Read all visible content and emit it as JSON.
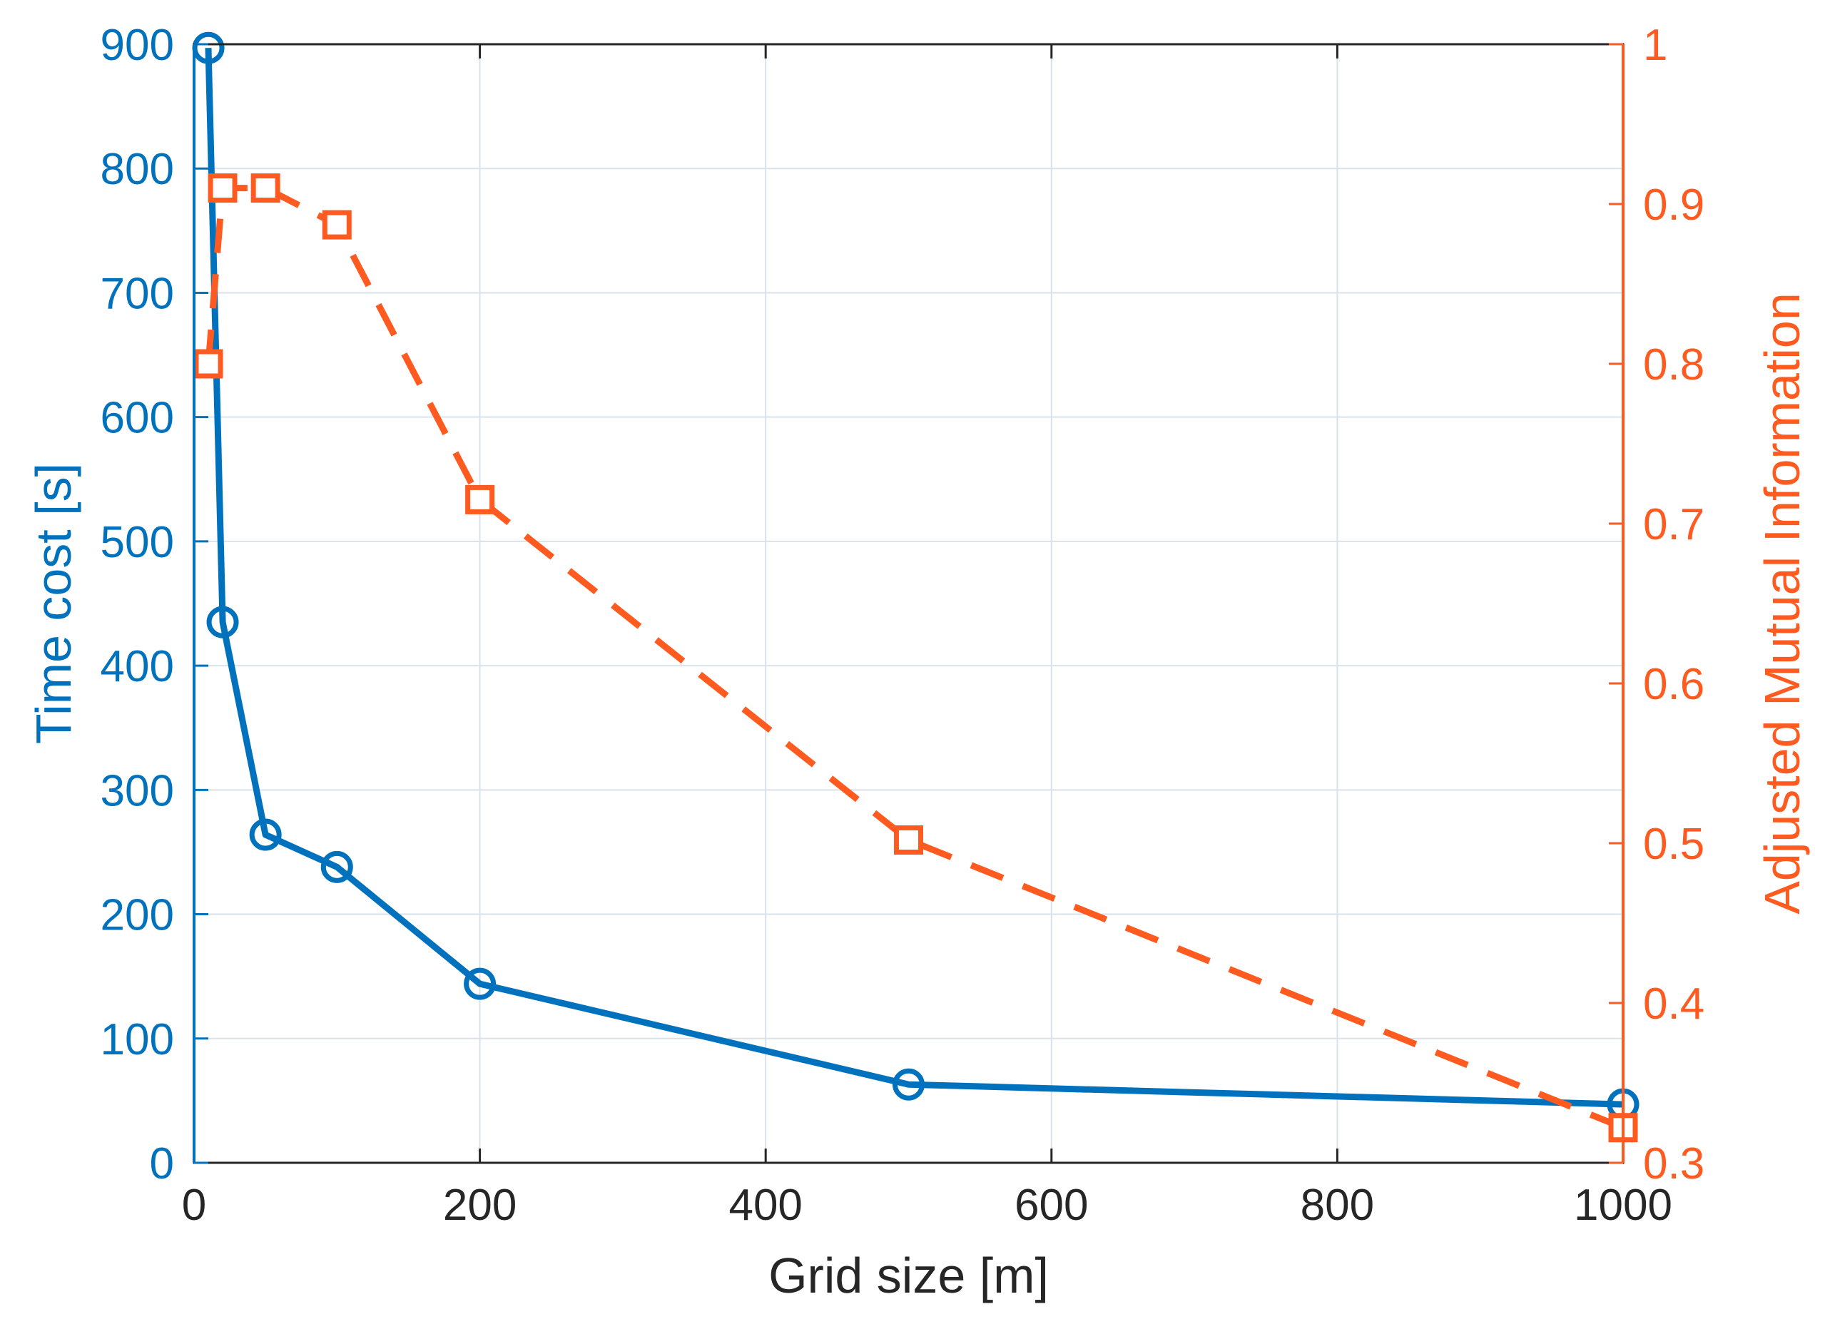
{
  "chart_data": {
    "type": "line",
    "title": "",
    "xlabel": "Grid size [m]",
    "ylabel_left": "Time cost [s]",
    "ylabel_right": "Adjusted Mutual Information",
    "xlim": [
      0,
      1000
    ],
    "ylim_left": [
      0,
      900
    ],
    "ylim_right": [
      0.3,
      1
    ],
    "xticks": [
      0,
      200,
      400,
      600,
      800,
      1000
    ],
    "yticks_left": [
      0,
      100,
      200,
      300,
      400,
      500,
      600,
      700,
      800,
      900
    ],
    "yticks_right": [
      0.3,
      0.4,
      0.5,
      0.6,
      0.7,
      0.8,
      0.9,
      1
    ],
    "ytick_labels_right": [
      "0.3",
      "0.4",
      "0.5",
      "0.6",
      "0.7",
      "0.8",
      "0.9",
      "1"
    ],
    "grid": true,
    "series": [
      {
        "axis": "left",
        "color": "#0072BD",
        "line_style": "solid",
        "marker": "circle",
        "x": [
          10,
          20,
          50,
          100,
          200,
          500,
          1000
        ],
        "values": [
          897,
          435,
          264,
          238,
          144,
          63,
          47
        ]
      },
      {
        "axis": "right",
        "color": "#FF5A1F",
        "line_style": "dashed",
        "marker": "square",
        "x": [
          10,
          20,
          50,
          100,
          200,
          500,
          1000
        ],
        "values": [
          0.8,
          0.91,
          0.91,
          0.887,
          0.715,
          0.502,
          0.322
        ]
      }
    ],
    "colors": {
      "left_axis": "#0072BD",
      "right_axis": "#FF5A1F",
      "frame": "#262626",
      "grid": "#d9e2ea"
    }
  }
}
